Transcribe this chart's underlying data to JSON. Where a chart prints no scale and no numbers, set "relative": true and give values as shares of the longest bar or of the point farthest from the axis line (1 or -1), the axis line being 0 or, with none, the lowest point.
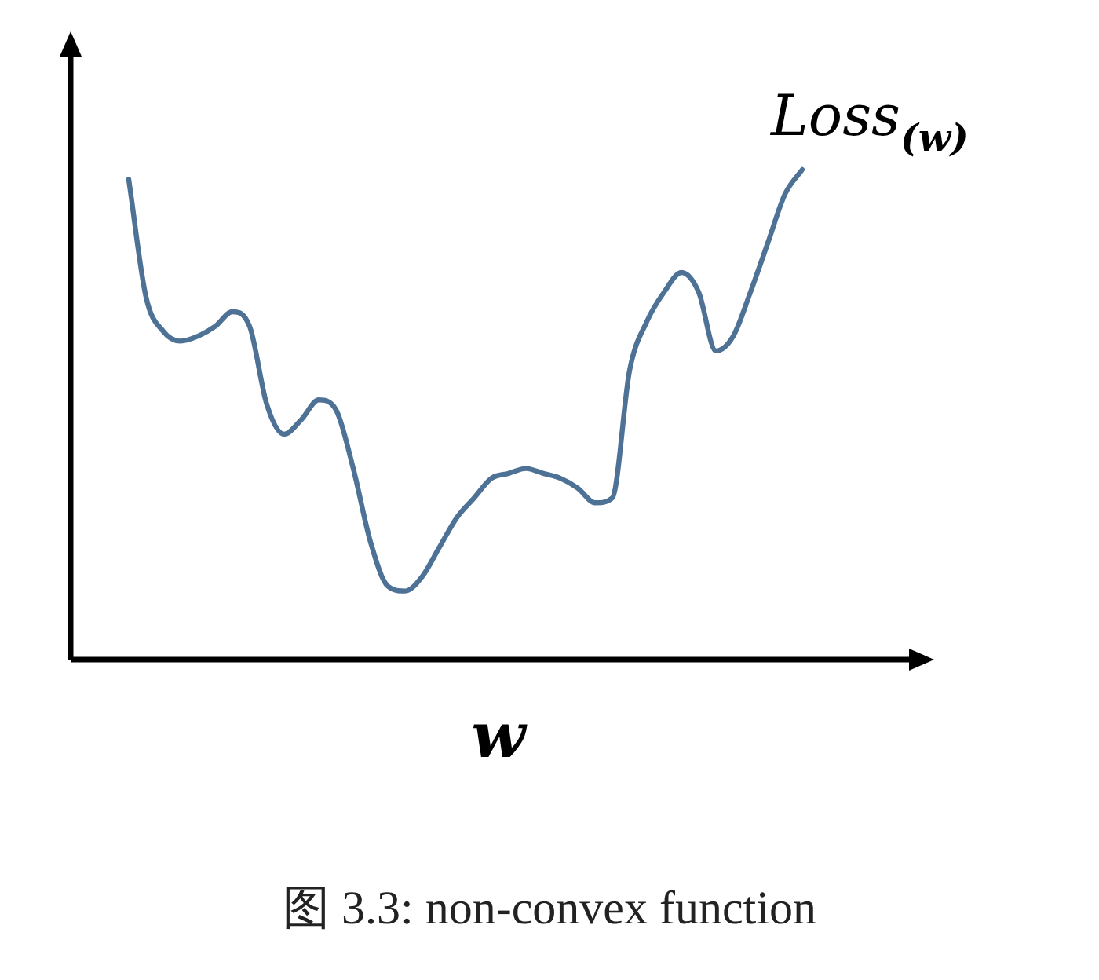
{
  "chart_data": {
    "type": "line",
    "relative": true,
    "xlabel": "w",
    "categories": [
      null,
      null,
      null,
      null,
      null,
      null,
      null,
      null,
      null,
      null,
      null,
      null,
      null,
      null,
      null,
      null,
      null,
      null,
      null,
      null,
      null,
      null,
      null,
      null,
      null,
      null,
      null,
      null,
      null,
      null,
      null,
      null,
      null,
      null,
      null,
      null,
      null,
      null,
      null,
      null
    ],
    "series": [
      {
        "name": "Loss$_{(w)}$",
        "color": "#4e7196",
        "values": [
          0.98,
          0.74,
          0.67,
          0.65,
          0.66,
          0.68,
          0.71,
          0.68,
          0.52,
          0.46,
          0.49,
          0.53,
          0.51,
          0.39,
          0.24,
          0.15,
          0.14,
          0.17,
          0.23,
          0.29,
          0.33,
          0.37,
          0.38,
          0.39,
          0.38,
          0.37,
          0.35,
          0.32,
          0.33,
          0.59,
          0.69,
          0.75,
          0.79,
          0.75,
          0.63,
          0.66,
          0.75,
          0.85,
          0.95,
          1
        ]
      }
    ],
    "annotations": [
      "图 3.3: non-convex function"
    ],
    "legend": false,
    "marker": "none",
    "line_style": "solid"
  }
}
